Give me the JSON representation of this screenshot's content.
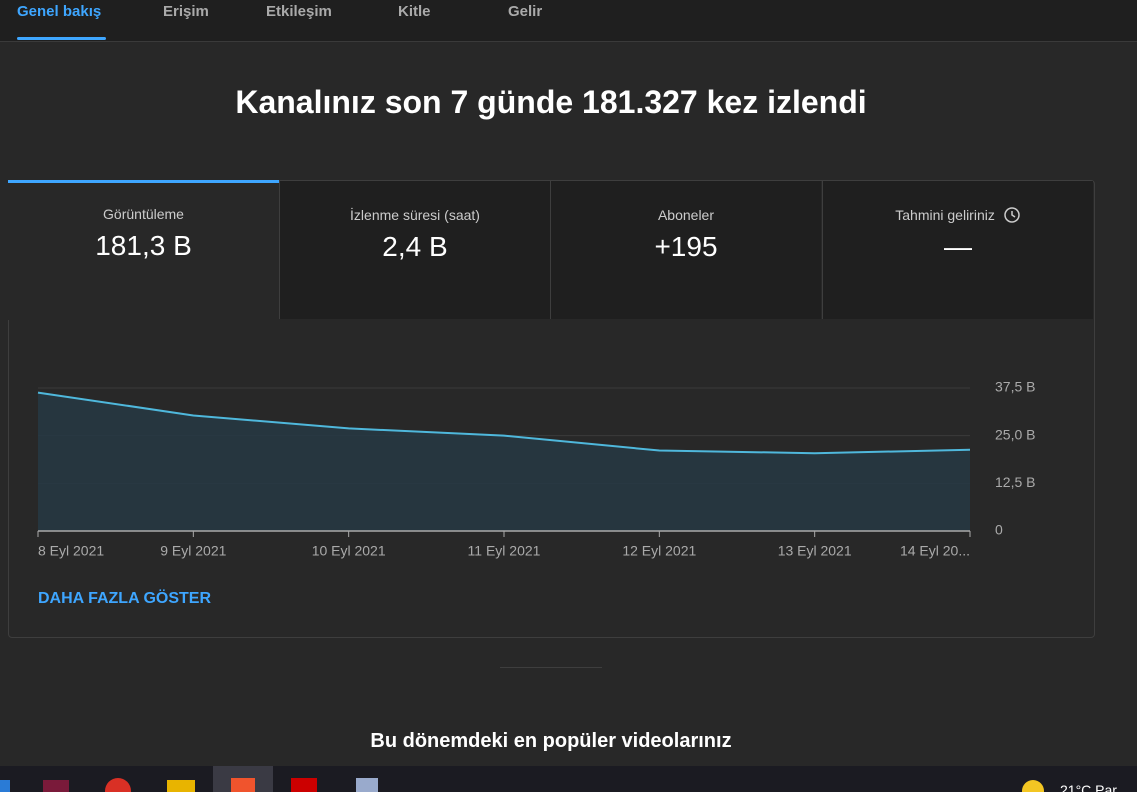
{
  "tabs": [
    "Genel bakış",
    "Erişim",
    "Etkileşim",
    "Kitle",
    "Gelir"
  ],
  "headline": "Kanalınız son 7 günde 181.327 kez izlendi",
  "metrics": [
    {
      "label": "Görüntüleme",
      "value": "181,3 B"
    },
    {
      "label": "İzlenme süresi (saat)",
      "value": "2,4 B"
    },
    {
      "label": "Aboneler",
      "value": "+195"
    },
    {
      "label": "Tahmini geliriniz",
      "value": "—"
    }
  ],
  "chart_data": {
    "type": "line",
    "categories": [
      "8 Eyl 2021",
      "9 Eyl 2021",
      "10 Eyl 2021",
      "11 Eyl 2021",
      "12 Eyl 2021",
      "13 Eyl 2021",
      "14 Eyl 20..."
    ],
    "values": [
      36.3,
      30.3,
      26.9,
      25.0,
      21.1,
      20.4,
      21.3
    ],
    "color": "#4fb8dc",
    "ylim": [
      0,
      37.5
    ],
    "yticks": [
      0,
      {
        "value": 12.5,
        "label": "12,5 B"
      },
      {
        "value": 25,
        "label": "25,0 B"
      },
      {
        "value": 37.5,
        "label": "37,5 B"
      }
    ],
    "grid": true
  },
  "more_link": "DAHA FAZLA GÖSTER",
  "section_title": "Bu dönemdeki en popüler videolarınız",
  "taskbar": {
    "weather": "21°C Par"
  }
}
